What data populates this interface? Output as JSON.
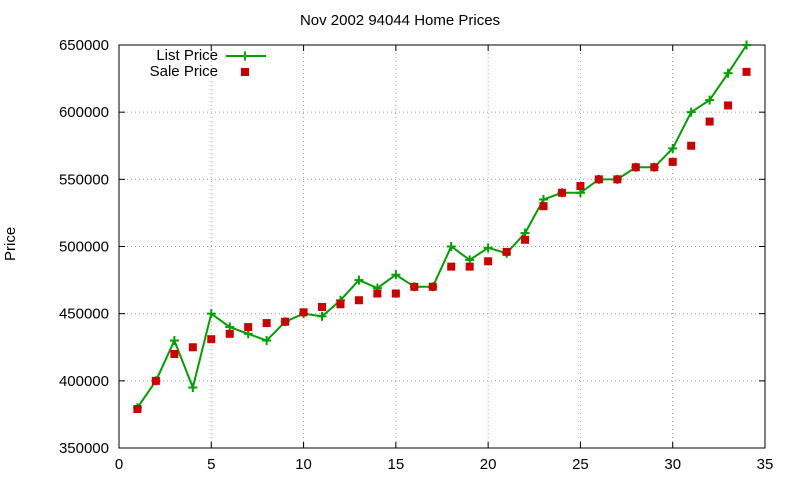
{
  "chart_data": {
    "type": "line",
    "title": "Nov 2002 94044 Home Prices",
    "xlabel": "",
    "ylabel": "Price",
    "xlim": [
      0,
      35
    ],
    "ylim": [
      350000,
      650000
    ],
    "xticks": [
      0,
      5,
      10,
      15,
      20,
      25,
      30,
      35
    ],
    "yticks": [
      350000,
      400000,
      450000,
      500000,
      550000,
      600000,
      650000
    ],
    "grid": true,
    "legend_position": "top-left",
    "x": [
      1,
      2,
      3,
      4,
      5,
      6,
      7,
      8,
      9,
      10,
      11,
      12,
      13,
      14,
      15,
      16,
      17,
      18,
      19,
      20,
      21,
      22,
      23,
      24,
      25,
      26,
      27,
      28,
      29,
      30,
      31,
      32,
      33,
      34
    ],
    "series": [
      {
        "name": "List Price",
        "style": "line-with-plus-markers",
        "color": "#00a000",
        "values": [
          380000,
          400000,
          430000,
          395000,
          450000,
          440000,
          435000,
          430000,
          444000,
          450000,
          448000,
          460000,
          475000,
          469000,
          479000,
          470000,
          470000,
          500000,
          490000,
          499000,
          495000,
          510000,
          535000,
          540000,
          540000,
          550000,
          550000,
          559000,
          559000,
          573000,
          600000,
          609000,
          629000,
          650000
        ]
      },
      {
        "name": "Sale Price",
        "style": "square-markers",
        "color": "#cc0000",
        "values": [
          379000,
          400000,
          420000,
          425000,
          431000,
          435000,
          440000,
          443000,
          444000,
          451000,
          455000,
          457000,
          460000,
          465000,
          465000,
          470000,
          470000,
          485000,
          485000,
          489000,
          496000,
          505000,
          530000,
          540000,
          545000,
          550000,
          550000,
          559000,
          559000,
          563000,
          575000,
          593000,
          605000,
          630000
        ]
      }
    ]
  }
}
